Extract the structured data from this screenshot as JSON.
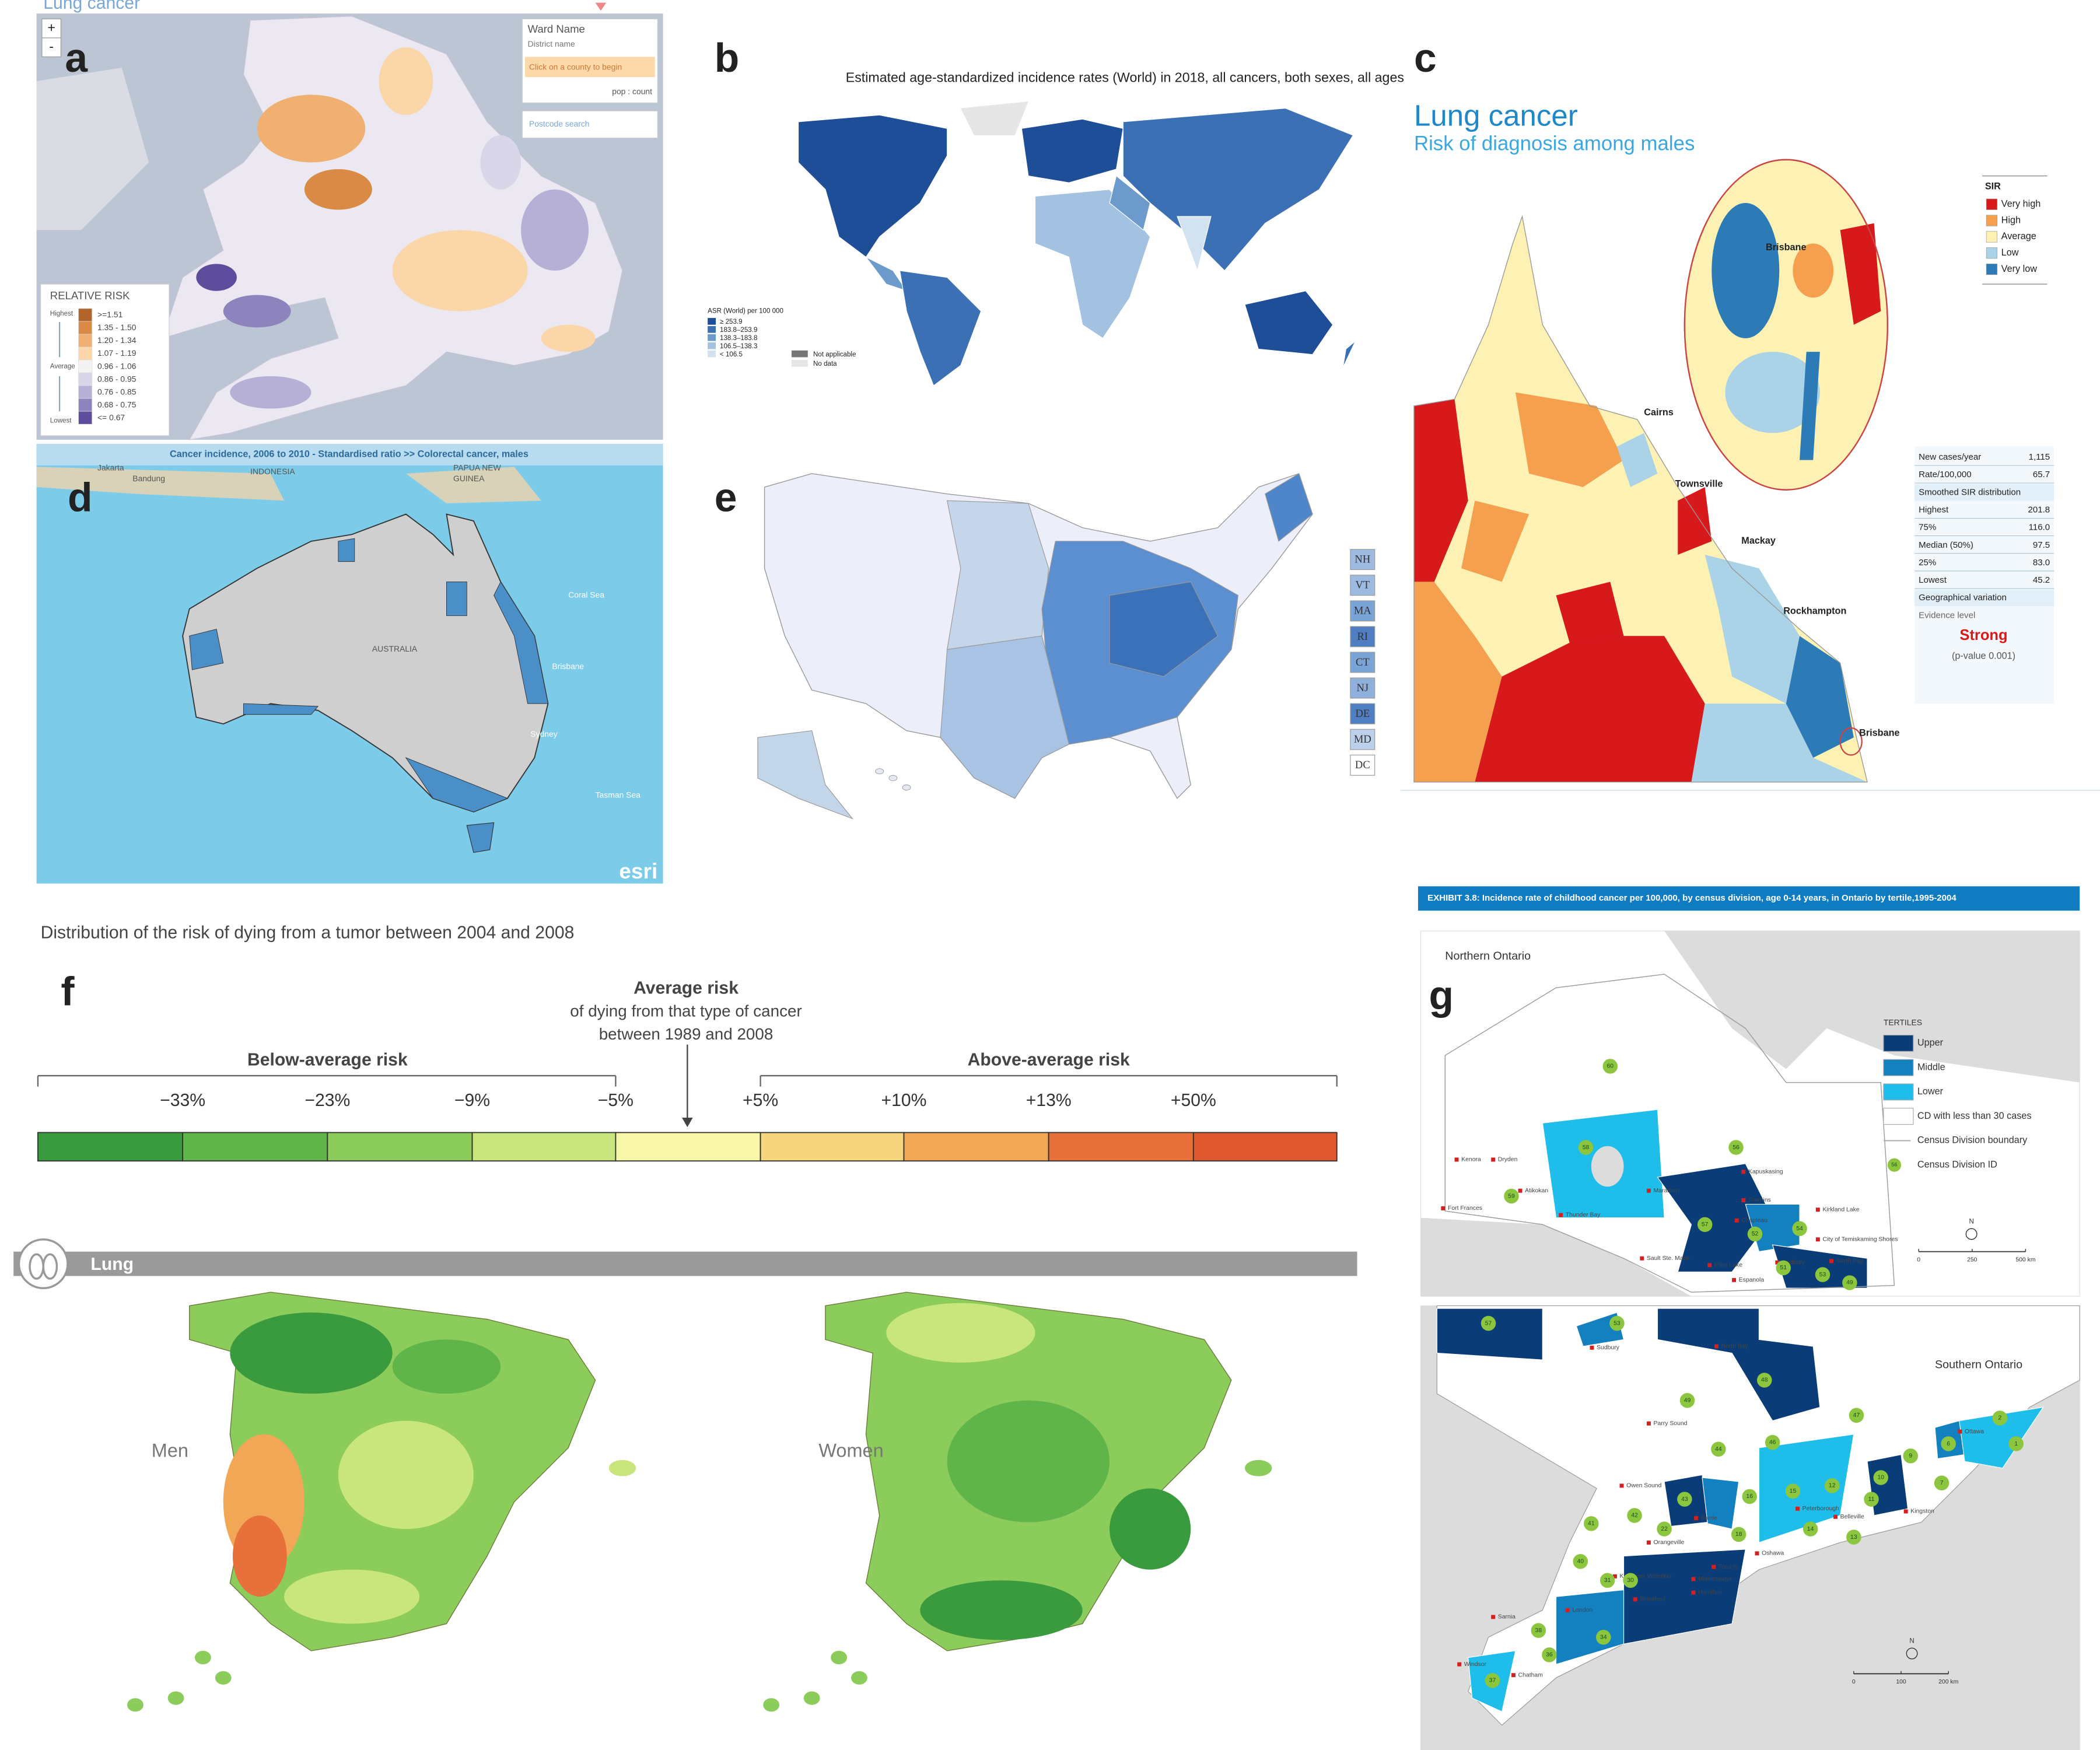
{
  "panels": {
    "a": {
      "letter": "a",
      "title": "Lung cancer",
      "zoom_in": "+",
      "zoom_out": "-",
      "ward": "Ward Name",
      "district": "District name",
      "prompt": "Click on a county to begin",
      "pop": "pop : count",
      "search": "Postcode search",
      "legend": {
        "title": "RELATIVE RISK",
        "highest": "Highest",
        "average": "Average",
        "lowest": "Lowest",
        "items": [
          {
            "label": ">=1.51",
            "color": "#b3642a"
          },
          {
            "label": "1.35 - 1.50",
            "color": "#d98a45"
          },
          {
            "label": "1.20 - 1.34",
            "color": "#f0b072"
          },
          {
            "label": "1.07 - 1.19",
            "color": "#fbd6a8"
          },
          {
            "label": "0.96 - 1.06",
            "color": "#f5f2f2"
          },
          {
            "label": "0.86 - 0.95",
            "color": "#d9d6ea"
          },
          {
            "label": "0.76 - 0.85",
            "color": "#b6b0d6"
          },
          {
            "label": "0.68 - 0.75",
            "color": "#8e84bd"
          },
          {
            "label": "<= 0.67",
            "color": "#5e4c9c"
          }
        ]
      }
    },
    "b": {
      "letter": "b",
      "title": "Estimated age-standardized incidence rates (World) in 2018, all cancers, both sexes, all ages",
      "legend": {
        "title": "ASR (World) per 100 000",
        "items": [
          {
            "label": "≥ 253.9",
            "color": "#1d4e97"
          },
          {
            "label": "183.8–253.9",
            "color": "#3b70b5"
          },
          {
            "label": "138.3–183.8",
            "color": "#6b9acb"
          },
          {
            "label": "106.5–138.3",
            "color": "#a3c1e0"
          },
          {
            "label": "< 106.5",
            "color": "#d3e2f1"
          }
        ],
        "extra": [
          {
            "label": "Not applicable",
            "color": "#777777"
          },
          {
            "label": "No data",
            "color": "#e6e6e6"
          }
        ]
      }
    },
    "c": {
      "letter": "c",
      "title": "Lung cancer",
      "subtitle": "Risk of diagnosis among males",
      "legend": {
        "title": "SIR",
        "items": [
          {
            "label": "Very high",
            "color": "#d7191c"
          },
          {
            "label": "High",
            "color": "#f4a04f"
          },
          {
            "label": "Average",
            "color": "#fdf2b3"
          },
          {
            "label": "Low",
            "color": "#abd3e8"
          },
          {
            "label": "Very low",
            "color": "#2c7bb6"
          }
        ]
      },
      "places": [
        "Brisbane",
        "Cairns",
        "Townsville",
        "Mackay",
        "Rockhampton",
        "Brisbane"
      ],
      "table": {
        "rows": [
          [
            "New cases/year",
            "1,115"
          ],
          [
            "Rate/100,000",
            "65.7"
          ]
        ],
        "smoothed": "Smoothed SIR distribution",
        "dist": [
          [
            "Highest",
            "201.8"
          ],
          [
            "75%",
            "116.0"
          ],
          [
            "Median (50%)",
            "97.5"
          ],
          [
            "25%",
            "83.0"
          ],
          [
            "Lowest",
            "45.2"
          ]
        ],
        "variation": "Geographical variation",
        "evidence": "Evidence level",
        "strength": "Strong",
        "p": "(p-value 0.001)"
      }
    },
    "d": {
      "letter": "d",
      "header": "Cancer incidence, 2006 to 2010 - Standardised ratio >>  Colorectal cancer, males",
      "places": [
        "Jakarta",
        "Bandung",
        "INDONESIA",
        "PAPUA NEW",
        "GUINEA",
        "Coral Sea",
        "Brisbane",
        "Sydney",
        "Tasman Sea",
        "AUSTRALIA"
      ],
      "credit": "esri"
    },
    "e": {
      "letter": "e",
      "states": [
        "NH",
        "VT",
        "MA",
        "RI",
        "CT",
        "NJ",
        "DE",
        "MD",
        "DC"
      ]
    },
    "f": {
      "title": "Distribution of the risk of dying from a tumor between 2004 and 2008",
      "letter": "f",
      "average": [
        "Average risk",
        "of dying from that type of cancer",
        "between 1989 and 2008"
      ],
      "below": "Below-average risk",
      "above": "Above-average risk",
      "ticks": [
        "−33%",
        "−23%",
        "−9%",
        "−5%",
        "+5%",
        "+10%",
        "+13%",
        "+50%"
      ],
      "scale_colors": [
        "#3a9a3e",
        "#5fb54a",
        "#8ccc5a",
        "#c9e67c",
        "#f8f7a8",
        "#f6d67c",
        "#f1a755",
        "#e8703a",
        "#e0582f"
      ],
      "site": "Lung",
      "maps": [
        "Men",
        "Women"
      ]
    },
    "g": {
      "header": "EXHIBIT 3.8: Incidence rate of childhood cancer per 100,000, by census division, age 0-14 years, in Ontario by tertile,1995-2004",
      "north": "Northern Ontario",
      "south": "Southern Ontario",
      "letter": "g",
      "legend": {
        "title": "TERTILES",
        "items": [
          {
            "label": "Upper",
            "color": "#0a3d78"
          },
          {
            "label": "Middle",
            "color": "#1380c0"
          },
          {
            "label": "Lower",
            "color": "#1fbdea"
          },
          {
            "label": "CD with less than 30 cases",
            "color": "#ffffff"
          }
        ],
        "boundary": "Census Division boundary",
        "id": "Census Division ID",
        "id_sample": "56"
      },
      "north_scale": [
        "0",
        "250",
        "500 km"
      ],
      "south_scale": [
        "0",
        "100",
        "200 km"
      ],
      "compass": "N",
      "north_cities": [
        "Kenora",
        "Dryden",
        "Fort Frances",
        "Atikokan",
        "Thunder Bay",
        "Marathon",
        "Kapuskasing",
        "Timmins",
        "Kirkland Lake",
        "Chapleau",
        "City of Temiskaming Shores",
        "Sault Ste. Marie",
        "Elliot Lake",
        "Sudbury",
        "North Bay",
        "Espanola"
      ],
      "north_ids": [
        "60",
        "58",
        "56",
        "59",
        "57",
        "52",
        "54",
        "51",
        "53",
        "49"
      ],
      "south_cities": [
        "Sudbury",
        "North Bay",
        "Parry Sound",
        "Owen Sound",
        "Peterborough",
        "Belleville",
        "Kingston",
        "Ottawa",
        "Barrie",
        "Orangeville",
        "Oshawa",
        "Toronto",
        "Mississauga",
        "Kitchener Waterloo",
        "Hamilton",
        "Brantford",
        "London",
        "Sarnia",
        "Windsor",
        "Chatham"
      ],
      "south_ids": [
        "57",
        "53",
        "48",
        "49",
        "47",
        "46",
        "44",
        "2",
        "1",
        "9",
        "6",
        "10",
        "7",
        "43",
        "15",
        "12",
        "11",
        "16",
        "42",
        "41",
        "22",
        "14",
        "13",
        "18",
        "40",
        "31",
        "30",
        "38",
        "34",
        "36",
        "37"
      ]
    }
  }
}
